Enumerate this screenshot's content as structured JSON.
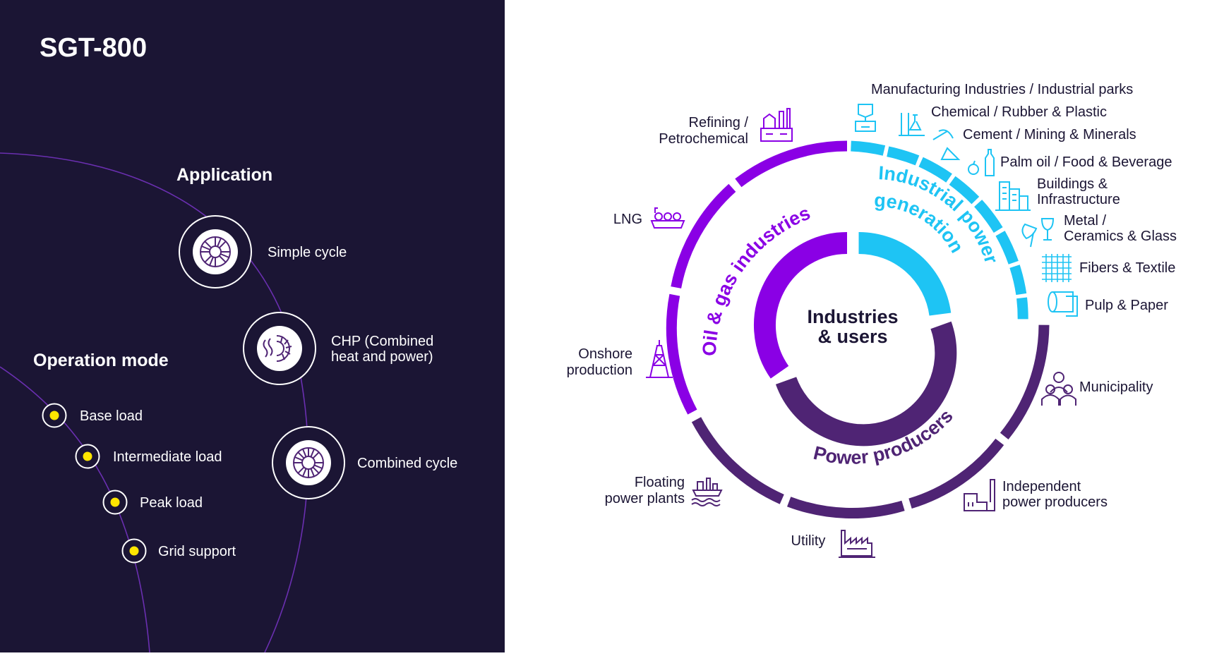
{
  "title": "SGT-800",
  "application": {
    "heading": "Application",
    "items": [
      {
        "lines": [
          "Simple cycle"
        ],
        "icon": "turbine-icon"
      },
      {
        "lines": [
          "CHP (Combined",
          "heat and power)"
        ],
        "icon": "turbine-heat-icon"
      },
      {
        "lines": [
          "Combined cycle"
        ],
        "icon": "turbine-combined-icon"
      }
    ]
  },
  "operation_mode": {
    "heading": "Operation mode",
    "items": [
      "Base load",
      "Intermediate load",
      "Peak load",
      "Grid support"
    ],
    "dot_color": "#ffe600"
  },
  "diagram": {
    "center_lines": [
      "Industries",
      "& users"
    ],
    "segments": [
      {
        "name": "oil-gas",
        "label": "Oil & gas industries",
        "color": "#8a00e5"
      },
      {
        "name": "industrial-power",
        "label_lines": [
          "Industrial power",
          "generation"
        ],
        "color": "#1ec4f4"
      },
      {
        "name": "power-producers",
        "label": "Power producers",
        "color": "#4f2474"
      }
    ],
    "oil_gas_users": [
      {
        "lines": [
          "Refining /",
          "Petrochemical"
        ],
        "icon": "refinery-icon"
      },
      {
        "lines": [
          "LNG"
        ],
        "icon": "lng-ship-icon"
      },
      {
        "lines": [
          "Onshore",
          "production"
        ],
        "icon": "oil-rig-icon"
      }
    ],
    "industrial_users": [
      {
        "lines": [
          "Manufacturing Industries / Industrial parks"
        ],
        "icon": "manufacturing-icon"
      },
      {
        "lines": [
          "Chemical / Rubber & Plastic"
        ],
        "icon": "chemical-flask-icon"
      },
      {
        "lines": [
          "Cement / Mining & Minerals"
        ],
        "icon": "pickaxe-icon"
      },
      {
        "lines": [
          "Palm oil / Food & Beverage"
        ],
        "icon": "food-bottle-icon"
      },
      {
        "lines": [
          "Buildings &",
          "Infrastructure"
        ],
        "icon": "buildings-icon"
      },
      {
        "lines": [
          "Metal /",
          "Ceramics & Glass"
        ],
        "icon": "ceramics-glass-icon"
      },
      {
        "lines": [
          "Fibers & Textile"
        ],
        "icon": "textile-icon"
      },
      {
        "lines": [
          "Pulp & Paper"
        ],
        "icon": "paper-roll-icon"
      }
    ],
    "power_users": [
      {
        "lines": [
          "Municipality"
        ],
        "icon": "people-icon"
      },
      {
        "lines": [
          "Independent",
          "power producers"
        ],
        "icon": "factory-icon"
      },
      {
        "lines": [
          "Utility"
        ],
        "icon": "power-plant-icon"
      },
      {
        "lines": [
          "Floating",
          "power plants"
        ],
        "icon": "floating-plant-icon"
      }
    ],
    "label_color": "#1b1534"
  }
}
